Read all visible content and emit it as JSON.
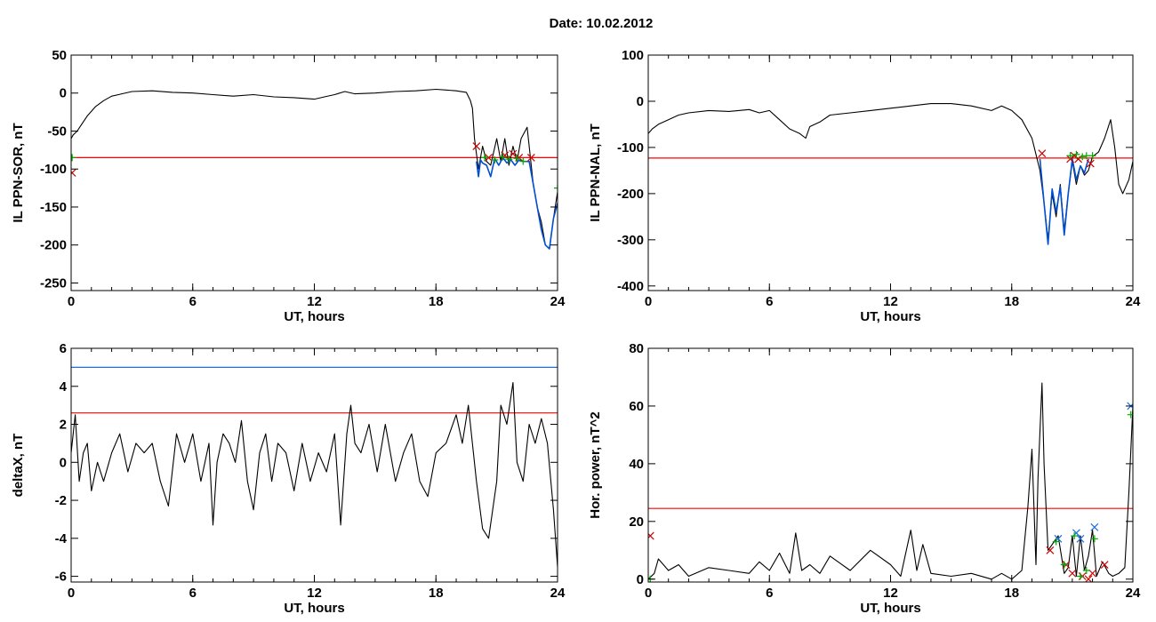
{
  "page_title": "Date:  10.02.2012",
  "chart_data": [
    {
      "type": "line",
      "ylabel": "IL PPN-SOR, nT",
      "xlabel": "UT, hours",
      "xlim": [
        0,
        24
      ],
      "ylim": [
        -260,
        50
      ],
      "xticks": [
        0,
        6,
        12,
        18,
        24
      ],
      "yticks": [
        50,
        0,
        -50,
        -100,
        -150,
        -200,
        -250
      ],
      "thresholds": [
        {
          "value": -85,
          "color": "#ff0000"
        }
      ],
      "series": [
        {
          "color": "#000000",
          "x": [
            0,
            0.1,
            0.3,
            0.5,
            0.8,
            1.2,
            1.6,
            2.0,
            2.5,
            3.0,
            4.0,
            5.0,
            6.0,
            7.0,
            8.0,
            9.0,
            10.0,
            11.0,
            12.0,
            12.5,
            13.0,
            13.5,
            14.0,
            15.0,
            16.0,
            17.0,
            18.0,
            18.5,
            19.0,
            19.5,
            19.7,
            19.8,
            19.9,
            20.0,
            20.1,
            20.3,
            20.5,
            20.7,
            21.0,
            21.2,
            21.4,
            21.6,
            21.8,
            22.0,
            22.2,
            22.5,
            22.8,
            23.0,
            23.2,
            23.4,
            23.6,
            23.8,
            24.0
          ],
          "y": [
            -60,
            -55,
            -50,
            -42,
            -30,
            -18,
            -10,
            -4,
            -1,
            2,
            3,
            1,
            0,
            -2,
            -4,
            -2,
            -5,
            -6,
            -8,
            -5,
            -2,
            2,
            -1,
            0,
            2,
            3,
            5,
            4,
            3,
            1,
            -10,
            -20,
            -60,
            -80,
            -100,
            -70,
            -90,
            -95,
            -60,
            -90,
            -60,
            -95,
            -70,
            -90,
            -60,
            -45,
            -120,
            -150,
            -170,
            -200,
            -205,
            -165,
            -130
          ]
        },
        {
          "color": "#0050d0",
          "x": [
            20.0,
            20.1,
            20.2,
            20.3,
            20.5,
            20.7,
            20.9,
            21.1,
            21.3,
            21.5,
            21.7,
            21.9,
            22.1,
            22.3,
            22.6,
            22.8,
            23.0,
            23.2,
            23.4,
            23.6,
            23.8,
            24.0
          ],
          "y": [
            -90,
            -110,
            -88,
            -92,
            -95,
            -110,
            -86,
            -95,
            -85,
            -92,
            -88,
            -95,
            -88,
            -90,
            -90,
            -120,
            -150,
            -180,
            -200,
            -205,
            -165,
            -145
          ]
        }
      ],
      "markers": [
        {
          "symbol": "x",
          "color": "#cc0000",
          "x": [
            0.05,
            20.0,
            20.6,
            21.4,
            21.8,
            22.1,
            22.7
          ],
          "y": [
            -105,
            -70,
            -85,
            -82,
            -80,
            -85,
            -85
          ]
        },
        {
          "symbol": "+",
          "color": "#00aa00",
          "x": [
            0.05,
            20.4,
            20.9,
            21.3,
            21.6,
            22.0,
            22.3,
            24.0
          ],
          "y": [
            -85,
            -85,
            -88,
            -84,
            -87,
            -86,
            -90,
            -125
          ]
        }
      ]
    },
    {
      "type": "line",
      "ylabel": "IL PPN-NAL, nT",
      "xlabel": "UT, hours",
      "xlim": [
        0,
        24
      ],
      "ylim": [
        -410,
        100
      ],
      "xticks": [
        0,
        6,
        12,
        18,
        24
      ],
      "yticks": [
        100,
        0,
        -100,
        -200,
        -300,
        -400
      ],
      "thresholds": [
        {
          "value": -123,
          "color": "#ff0000"
        }
      ],
      "series": [
        {
          "color": "#000000",
          "x": [
            0,
            0.2,
            0.5,
            1.0,
            1.5,
            2.0,
            3.0,
            4.0,
            5.0,
            5.5,
            6.0,
            6.5,
            7.0,
            7.5,
            7.8,
            8.0,
            8.5,
            9.0,
            10.0,
            11.0,
            12.0,
            13.0,
            14.0,
            15.0,
            16.0,
            17.0,
            17.5,
            18.0,
            18.5,
            19.0,
            19.4,
            19.6,
            19.8,
            20.0,
            20.2,
            20.4,
            20.6,
            20.8,
            21.0,
            21.2,
            21.4,
            21.6,
            21.8,
            22.0,
            22.3,
            22.6,
            22.9,
            23.1,
            23.3,
            23.5,
            23.8,
            24.0
          ],
          "y": [
            -70,
            -60,
            -50,
            -40,
            -30,
            -25,
            -20,
            -22,
            -18,
            -25,
            -20,
            -40,
            -60,
            -70,
            -80,
            -55,
            -45,
            -30,
            -25,
            -20,
            -15,
            -10,
            -5,
            -5,
            -10,
            -20,
            -10,
            -20,
            -40,
            -80,
            -150,
            -220,
            -300,
            -200,
            -250,
            -180,
            -280,
            -200,
            -130,
            -180,
            -140,
            -160,
            -150,
            -120,
            -110,
            -80,
            -40,
            -100,
            -180,
            -200,
            -170,
            -130
          ]
        },
        {
          "color": "#0050d0",
          "x": [
            19.4,
            19.6,
            19.8,
            19.9,
            20.0,
            20.2,
            20.4,
            20.6,
            20.8,
            21.0,
            21.2,
            21.4,
            21.6,
            21.8
          ],
          "y": [
            -125,
            -220,
            -310,
            -250,
            -190,
            -240,
            -185,
            -290,
            -200,
            -125,
            -170,
            -140,
            -155,
            -125
          ]
        }
      ],
      "markers": [
        {
          "symbol": "x",
          "color": "#cc0000",
          "x": [
            19.5,
            20.9,
            21.1,
            21.3,
            21.9
          ],
          "y": [
            -113,
            -125,
            -118,
            -125,
            -135
          ]
        },
        {
          "symbol": "+",
          "color": "#00aa00",
          "x": [
            20.9,
            21.2,
            21.5,
            21.7,
            22.0
          ],
          "y": [
            -118,
            -115,
            -120,
            -118,
            -118
          ]
        }
      ]
    },
    {
      "type": "line",
      "ylabel": "deltaX, nT",
      "xlabel": "UT, hours",
      "xlim": [
        0,
        24
      ],
      "ylim": [
        -6.3,
        6
      ],
      "xticks": [
        0,
        6,
        12,
        18,
        24
      ],
      "yticks": [
        6,
        4,
        2,
        0,
        -2,
        -4,
        -6
      ],
      "thresholds": [
        {
          "value": 5,
          "color": "#1a6fe0"
        },
        {
          "value": 2.6,
          "color": "#ff0000"
        }
      ],
      "series": [
        {
          "color": "#000000",
          "x": [
            0,
            0.2,
            0.4,
            0.6,
            0.8,
            1.0,
            1.3,
            1.6,
            2.0,
            2.4,
            2.8,
            3.2,
            3.6,
            4.0,
            4.4,
            4.8,
            5.2,
            5.6,
            6.0,
            6.4,
            6.8,
            7.0,
            7.2,
            7.5,
            7.8,
            8.1,
            8.4,
            8.7,
            9.0,
            9.3,
            9.6,
            9.9,
            10.2,
            10.6,
            11.0,
            11.4,
            11.8,
            12.2,
            12.6,
            13.0,
            13.3,
            13.6,
            13.8,
            14.0,
            14.3,
            14.7,
            15.1,
            15.5,
            16.0,
            16.4,
            16.8,
            17.2,
            17.6,
            18.0,
            18.5,
            19.0,
            19.3,
            19.6,
            20.0,
            20.3,
            20.6,
            21.0,
            21.2,
            21.5,
            21.8,
            22.0,
            22.3,
            22.6,
            22.9,
            23.2,
            23.5,
            23.8,
            24.0
          ],
          "y": [
            0.5,
            2.5,
            -1.0,
            0.5,
            1.0,
            -1.5,
            0.0,
            -1.0,
            0.5,
            1.5,
            -0.5,
            1.0,
            0.5,
            1.0,
            -1.0,
            -2.3,
            1.5,
            0.0,
            1.5,
            -1.0,
            1.0,
            -3.3,
            0.0,
            1.5,
            1.0,
            0.0,
            2.2,
            -1.0,
            -2.5,
            0.5,
            1.5,
            -1.0,
            1.0,
            0.5,
            -1.5,
            1.0,
            -1.0,
            0.5,
            -0.5,
            1.5,
            -3.3,
            1.5,
            3.0,
            1.0,
            0.5,
            2.0,
            -0.5,
            2.0,
            -1.0,
            0.5,
            1.5,
            -1.0,
            -1.8,
            0.5,
            1.0,
            2.5,
            1.0,
            3.0,
            -1.0,
            -3.5,
            -4.0,
            -1.0,
            3.0,
            2.0,
            4.2,
            0.0,
            -1.0,
            2.0,
            1.0,
            2.3,
            1.0,
            -2.5,
            -5.5
          ]
        }
      ],
      "markers": []
    },
    {
      "type": "line",
      "ylabel": "Hor. power, nT^2",
      "xlabel": "UT, hours",
      "xlim": [
        0,
        24
      ],
      "ylim": [
        -1,
        80
      ],
      "xticks": [
        0,
        6,
        12,
        18,
        24
      ],
      "yticks": [
        80,
        60,
        40,
        20,
        0
      ],
      "thresholds": [
        {
          "value": 24.5,
          "color": "#ff0000"
        }
      ],
      "series": [
        {
          "color": "#000000",
          "x": [
            0,
            0.3,
            0.5,
            1.0,
            1.5,
            2.0,
            3.0,
            4.0,
            5.0,
            5.5,
            6.0,
            6.5,
            7.0,
            7.3,
            7.6,
            8.0,
            8.5,
            9.0,
            10.0,
            11.0,
            12.0,
            12.5,
            13.0,
            13.3,
            13.6,
            14.0,
            15.0,
            16.0,
            17.0,
            17.5,
            18.0,
            18.5,
            18.8,
            19.0,
            19.2,
            19.3,
            19.5,
            19.6,
            19.8,
            20.0,
            20.3,
            20.6,
            20.8,
            21.0,
            21.2,
            21.4,
            21.6,
            21.8,
            22.0,
            22.2,
            22.5,
            22.8,
            23.0,
            23.3,
            23.6,
            23.8,
            24.0
          ],
          "y": [
            0,
            2,
            7,
            3,
            5,
            1,
            4,
            3,
            2,
            6,
            3,
            9,
            2,
            16,
            3,
            5,
            2,
            8,
            3,
            10,
            5,
            1,
            17,
            3,
            12,
            2,
            1,
            2,
            0,
            2,
            0,
            3,
            25,
            45,
            5,
            35,
            68,
            40,
            10,
            12,
            15,
            2,
            4,
            15,
            1,
            15,
            3,
            8,
            17,
            1,
            6,
            2,
            1,
            2,
            4,
            30,
            60
          ]
        }
      ],
      "markers": [
        {
          "symbol": "x",
          "color": "#cc0000",
          "x": [
            0.1,
            19.9,
            20.7,
            21.0,
            21.5,
            21.8,
            22.0,
            22.6
          ],
          "y": [
            15,
            10,
            5,
            2,
            1,
            0,
            2,
            5
          ]
        },
        {
          "symbol": "x",
          "color": "#1a6fe0",
          "x": [
            20.3,
            21.2,
            21.4,
            22.1,
            23.9
          ],
          "y": [
            14,
            16,
            14,
            18,
            60
          ]
        },
        {
          "symbol": "+",
          "color": "#00aa00",
          "x": [
            0.1,
            20.2,
            20.6,
            21.1,
            21.4,
            21.7,
            22.1,
            23.9
          ],
          "y": [
            0,
            13,
            5,
            15,
            1,
            3,
            14,
            57
          ]
        }
      ]
    }
  ]
}
